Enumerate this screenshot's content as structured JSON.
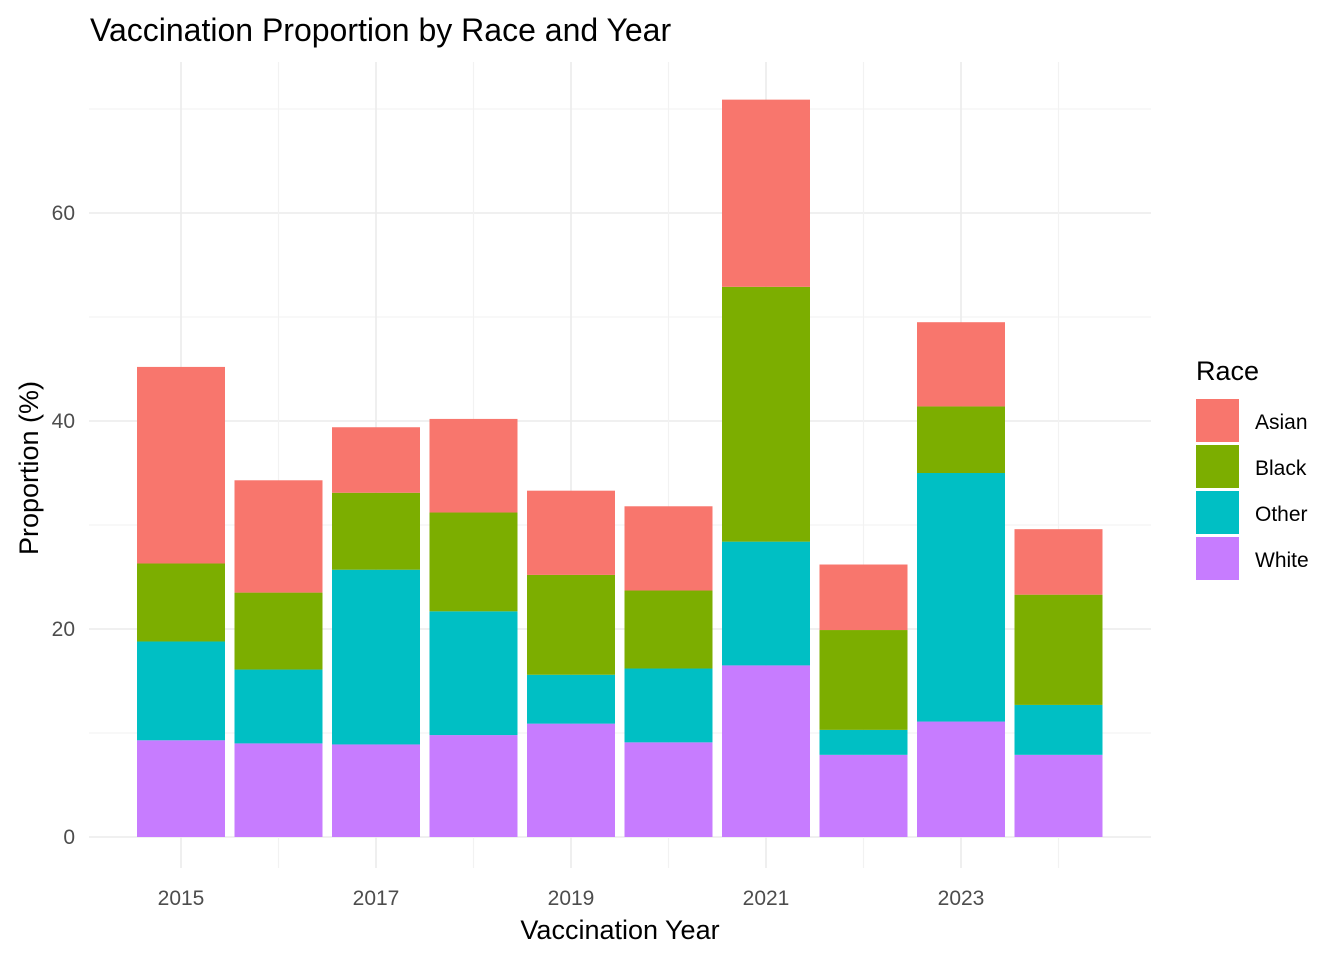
{
  "chart_data": {
    "type": "bar",
    "stacked": true,
    "title": "Vaccination Proportion by Race and Year",
    "xlabel": "Vaccination Year",
    "ylabel": "Proportion (%)",
    "categories": [
      2015,
      2016,
      2017,
      2018,
      2019,
      2020,
      2021,
      2022,
      2023,
      2024
    ],
    "x_ticks": [
      "2015",
      "2017",
      "2019",
      "2021",
      "2023"
    ],
    "y_ticks": [
      "0",
      "20",
      "40",
      "60"
    ],
    "ylim": [
      0,
      75
    ],
    "grid": true,
    "legend": {
      "title": "Race",
      "position": "right",
      "entries": [
        "Asian",
        "Black",
        "Other",
        "White"
      ]
    },
    "series": [
      {
        "name": "White",
        "color": "#C77CFF",
        "values": [
          9.3,
          9.0,
          8.9,
          9.8,
          10.9,
          9.1,
          16.5,
          7.9,
          11.1,
          7.9
        ]
      },
      {
        "name": "Other",
        "color": "#00BFC4",
        "values": [
          9.5,
          7.1,
          16.8,
          11.9,
          4.7,
          7.1,
          11.9,
          2.4,
          23.9,
          4.8
        ]
      },
      {
        "name": "Black",
        "color": "#7CAE00",
        "values": [
          7.5,
          7.4,
          7.4,
          9.5,
          9.6,
          7.5,
          24.5,
          9.6,
          6.4,
          10.6
        ]
      },
      {
        "name": "Asian",
        "color": "#F8766D",
        "values": [
          18.9,
          10.8,
          6.3,
          9.0,
          8.1,
          8.1,
          18.0,
          6.3,
          8.1,
          6.3
        ]
      }
    ]
  }
}
